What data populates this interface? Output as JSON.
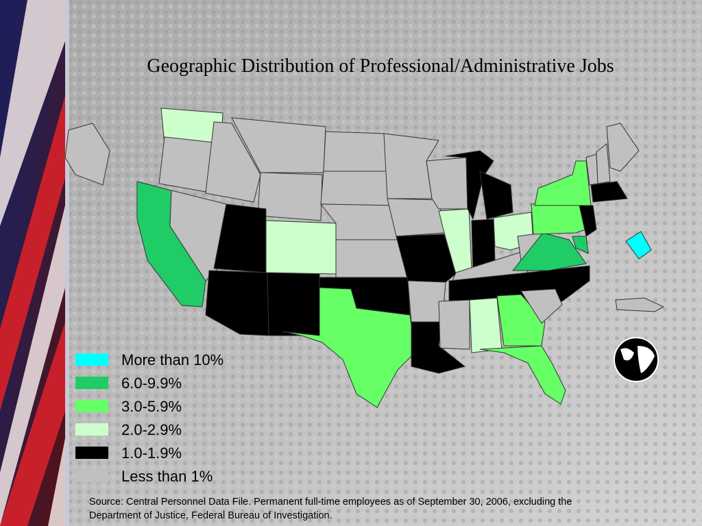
{
  "title": "Geographic Distribution of Professional/Administrative Jobs",
  "legend": [
    {
      "label": "More than 10%",
      "color": "#00ffff"
    },
    {
      "label": "6.0-9.9%",
      "color": "#1fcc66"
    },
    {
      "label": "3.0-5.9%",
      "color": "#66ff66"
    },
    {
      "label": "2.0-2.9%",
      "color": "#ccffcc"
    },
    {
      "label": "1.0-1.9%",
      "color": "#000000"
    },
    {
      "label": "Less than 1%",
      "color": "#c0c0c0"
    }
  ],
  "source": [
    "Source:  Central Personnel Data File.  Permanent full-time employees as of September 30, 2006, excluding the",
    "Department of Justice, Federal Bureau of Investigation."
  ]
}
